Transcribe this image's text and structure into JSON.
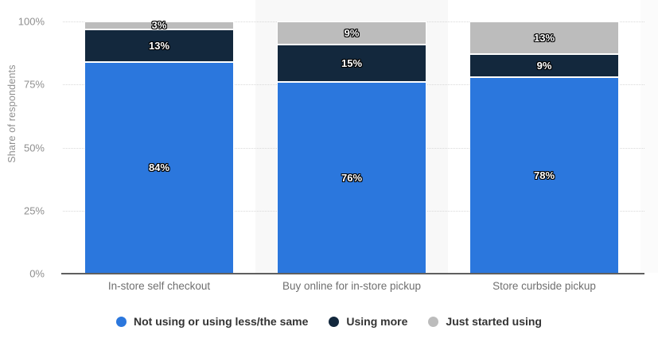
{
  "chart_data": {
    "type": "bar",
    "stacked": true,
    "orientation": "vertical",
    "title": "",
    "xlabel": "",
    "ylabel": "Share of respondents",
    "ylim": [
      0,
      100
    ],
    "categories": [
      "In-store self checkout",
      "Buy online for in-store pickup",
      "Store curbside pickup"
    ],
    "series": [
      {
        "name": "Not using or using less/the same",
        "values": [
          84,
          76,
          78
        ],
        "color": "#2b77dd"
      },
      {
        "name": "Using more",
        "values": [
          13,
          15,
          9
        ],
        "color": "#13283d"
      },
      {
        "name": "Just started using",
        "values": [
          3,
          9,
          13
        ],
        "color": "#bcbcbc"
      }
    ],
    "value_label_suffix": "%",
    "yticks": [
      {
        "value": 0,
        "label": "0%"
      },
      {
        "value": 25,
        "label": "25%"
      },
      {
        "value": 50,
        "label": "50%"
      },
      {
        "value": 75,
        "label": "75%"
      },
      {
        "value": 100,
        "label": "100%"
      }
    ],
    "grid": "horizontal-dotted",
    "legend_position": "bottom",
    "highlighted_category": "Buy online for in-store pickup"
  },
  "style": {
    "background": "#ffffff",
    "highlight_band": "#f8f8f8",
    "right_edge_band": "#fbfbfb",
    "gridline": "#d9d9d9",
    "axis_line": "#5f5f5f",
    "tick_text": "#8f8f8f",
    "category_text": "#6f6f6f",
    "legend_text": "#333333",
    "value_text": "#ffffff",
    "value_outline": "#000000"
  }
}
